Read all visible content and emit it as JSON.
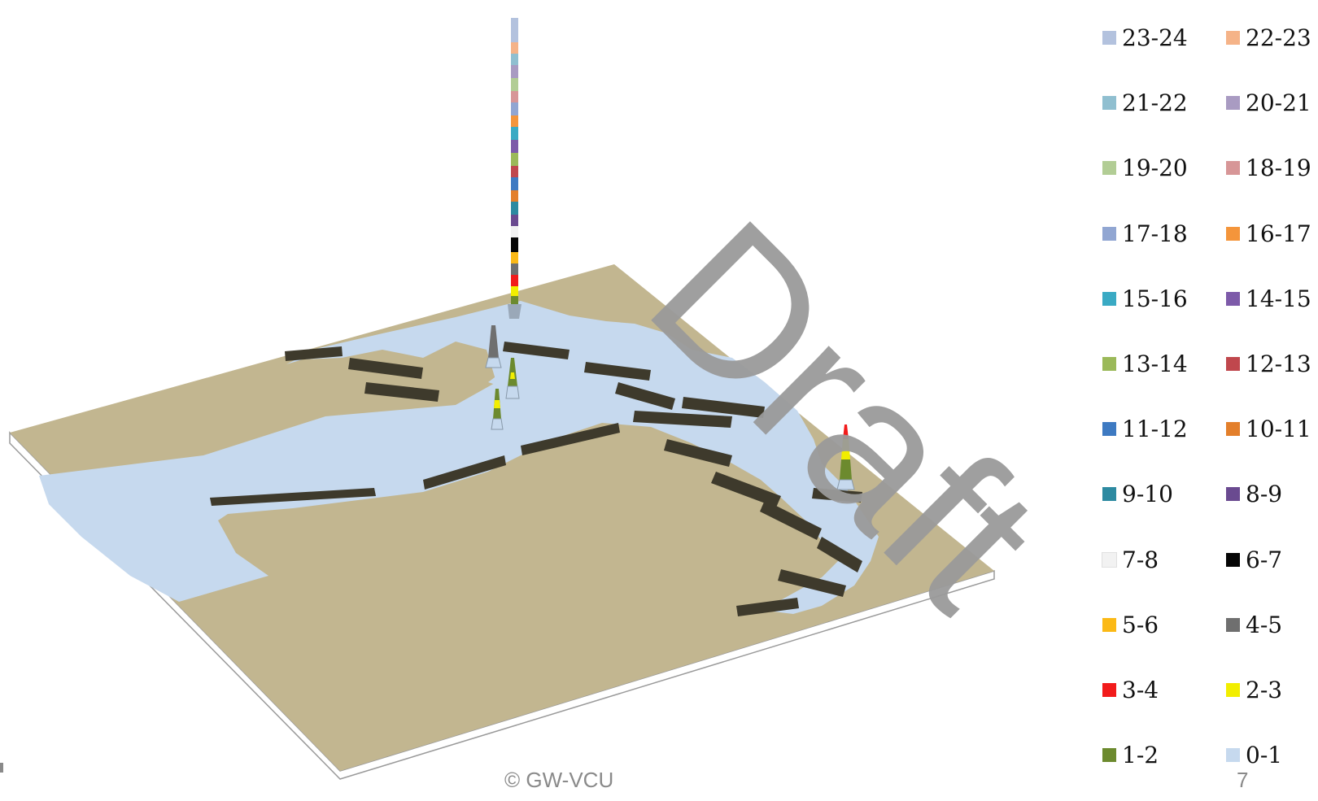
{
  "footer": {
    "copyright": "© GW-VCU",
    "page_number": "7"
  },
  "watermark": {
    "text": "Draft"
  },
  "chart_data": {
    "type": "3d-surface-map",
    "title": "",
    "legend_title": "",
    "legend_placement": "right",
    "colors": {
      "land": "#c2b690",
      "water": "#c6d9ee",
      "cliff": "#3e3a2c"
    },
    "legend": [
      {
        "label": "23-24",
        "color": "#b3c2de"
      },
      {
        "label": "22-23",
        "color": "#f5b388"
      },
      {
        "label": "21-22",
        "color": "#90bfd0"
      },
      {
        "label": "20-21",
        "color": "#a99bc2"
      },
      {
        "label": "19-20",
        "color": "#b2cd95"
      },
      {
        "label": "18-19",
        "color": "#d79697"
      },
      {
        "label": "17-18",
        "color": "#91a6d2"
      },
      {
        "label": "16-17",
        "color": "#f4953b"
      },
      {
        "label": "15-16",
        "color": "#3aaac4"
      },
      {
        "label": "14-15",
        "color": "#7d5aa9"
      },
      {
        "label": "13-14",
        "color": "#9bb959"
      },
      {
        "label": "12-13",
        "color": "#c0474d"
      },
      {
        "label": "11-12",
        "color": "#3e7ac2"
      },
      {
        "label": "10-11",
        "color": "#e37f2b"
      },
      {
        "label": "9-10",
        "color": "#2d8aa1"
      },
      {
        "label": "8-9",
        "color": "#6a4a90"
      },
      {
        "label": "7-8",
        "color": "#f2f2f2"
      },
      {
        "label": "6-7",
        "color": "#050505"
      },
      {
        "label": "5-6",
        "color": "#fbb916"
      },
      {
        "label": "4-5",
        "color": "#6f6f6f"
      },
      {
        "label": "3-4",
        "color": "#f21b1b"
      },
      {
        "label": "2-3",
        "color": "#f2ee00"
      },
      {
        "label": "1-2",
        "color": "#6c8a2e"
      },
      {
        "label": "0-1",
        "color": "#c6d9ee"
      }
    ],
    "spikes": [
      {
        "name": "main",
        "max_class": "23-24"
      },
      {
        "name": "secondary-a",
        "max_class": "4-5"
      },
      {
        "name": "secondary-b",
        "max_class": "3-4"
      },
      {
        "name": "secondary-c",
        "max_class": "2-3"
      },
      {
        "name": "east",
        "max_class": "3-4"
      }
    ]
  }
}
